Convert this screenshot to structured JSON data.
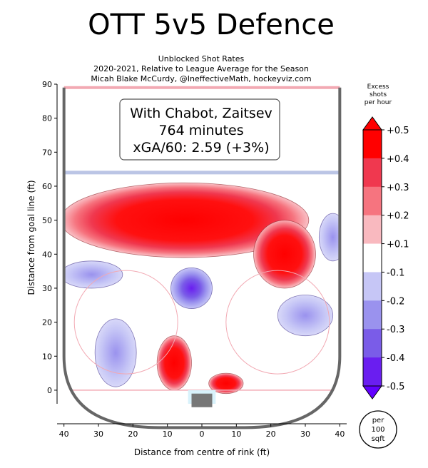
{
  "title": "OTT 5v5 Defence",
  "subtitle_lines": [
    "Unblocked Shot Rates",
    "2020-2021, Relative to League Average for the Season",
    "Micah Blake McCurdy, @IneffectiveMath, hockeyviz.com"
  ],
  "info_box": {
    "line1": "With Chabot, Zaitsev",
    "line2": "764 minutes",
    "line3": "xGA/60: 2.59 (+3%)"
  },
  "units_badge": [
    "per",
    "100",
    "sqft"
  ],
  "chart_data": {
    "type": "heatmap",
    "xlabel": "Distance from centre of rink (ft)",
    "ylabel": "Distance from goal line (ft)",
    "xlim": [
      -42,
      42
    ],
    "ylim": [
      -4,
      90
    ],
    "x_ticks": [
      40,
      30,
      20,
      10,
      0,
      10,
      20,
      30,
      40
    ],
    "x_tick_values": [
      -40,
      -30,
      -20,
      -10,
      0,
      10,
      20,
      30,
      40
    ],
    "y_ticks": [
      0,
      10,
      20,
      30,
      40,
      50,
      60,
      70,
      80,
      90
    ],
    "colorbar": {
      "label_lines": [
        "Excess",
        "shots",
        "per hour"
      ],
      "levels": [
        "+0.5",
        "+0.4",
        "+0.3",
        "+0.2",
        "+0.1",
        "-0.1",
        "-0.2",
        "-0.3",
        "-0.4",
        "-0.5"
      ],
      "level_values": [
        0.5,
        0.4,
        0.3,
        0.2,
        0.1,
        -0.1,
        -0.2,
        -0.3,
        -0.4,
        -0.5
      ],
      "colors": [
        "#ff0000",
        "#ff0000",
        "#f0384f",
        "#f6747f",
        "#f9b9bf",
        "#ffffff",
        "#c6c6f6",
        "#9a92ee",
        "#7a5ce8",
        "#6a1ef0",
        "#6200ff"
      ]
    },
    "regions": [
      {
        "name": "high-slot-hot",
        "level": 0.5,
        "cx": -5,
        "cy": 50,
        "rx": 36,
        "ry": 11
      },
      {
        "name": "right-point-hot",
        "level": 0.5,
        "cx": 24,
        "cy": 40,
        "rx": 9,
        "ry": 10
      },
      {
        "name": "left-low-hot",
        "level": 0.5,
        "cx": -8,
        "cy": 8,
        "rx": 5,
        "ry": 8
      },
      {
        "name": "crease-hot",
        "level": 0.5,
        "cx": 7,
        "cy": 2,
        "rx": 5,
        "ry": 3
      },
      {
        "name": "slot-cold",
        "level": -0.4,
        "cx": -3,
        "cy": 30,
        "rx": 6,
        "ry": 6
      },
      {
        "name": "left-faceoff-cold",
        "level": -0.2,
        "cx": -32,
        "cy": 34,
        "rx": 9,
        "ry": 4
      },
      {
        "name": "left-low-cold",
        "level": -0.2,
        "cx": -25,
        "cy": 11,
        "rx": 6,
        "ry": 10
      },
      {
        "name": "right-circle-cold",
        "level": -0.2,
        "cx": 30,
        "cy": 22,
        "rx": 8,
        "ry": 6
      },
      {
        "name": "right-point-cold",
        "level": -0.2,
        "cx": 38,
        "cy": 45,
        "rx": 4,
        "ry": 7
      }
    ],
    "lines": {
      "blue_line_y": 64,
      "red_goal_line_y": 0
    }
  }
}
